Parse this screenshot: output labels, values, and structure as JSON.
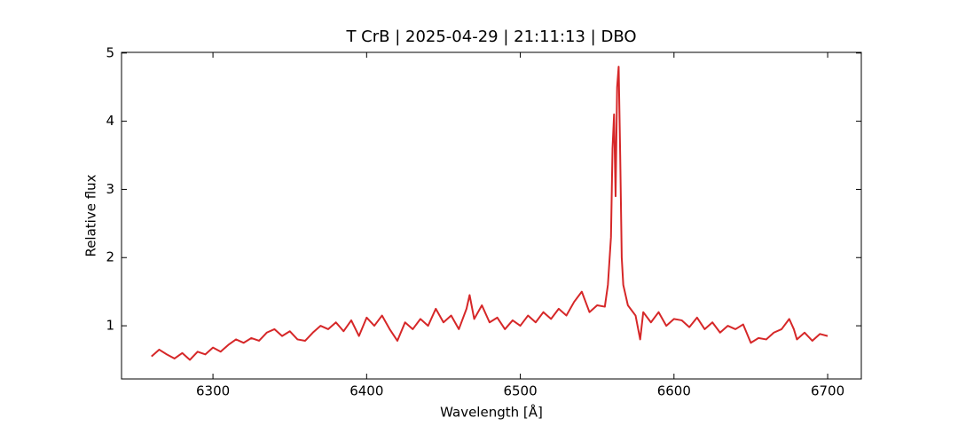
{
  "chart_data": {
    "type": "line",
    "title": "T CrB | 2025-04-29 | 21:11:13 | DBO",
    "x_label": "Wavelength [Å]",
    "y_label": "Relative flux",
    "xlim": [
      6240.5,
      6721.9
    ],
    "ylim": [
      0.22,
      5.01
    ],
    "xticks": [
      6300,
      6400,
      6500,
      6600,
      6700
    ],
    "yticks": [
      1,
      2,
      3,
      4,
      5
    ],
    "grid": false,
    "series": [
      {
        "color": "#d62728",
        "x": [
          6260,
          6265,
          6270,
          6275,
          6280,
          6285,
          6290,
          6295,
          6300,
          6305,
          6310,
          6315,
          6320,
          6325,
          6330,
          6335,
          6340,
          6345,
          6350,
          6355,
          6360,
          6365,
          6370,
          6375,
          6380,
          6385,
          6390,
          6395,
          6400,
          6405,
          6410,
          6415,
          6420,
          6425,
          6430,
          6435,
          6440,
          6445,
          6450,
          6455,
          6460,
          6465,
          6467,
          6470,
          6475,
          6480,
          6485,
          6490,
          6495,
          6500,
          6505,
          6510,
          6515,
          6520,
          6525,
          6530,
          6535,
          6540,
          6545,
          6550,
          6555,
          6557,
          6559,
          6560,
          6561,
          6562,
          6563,
          6564,
          6565,
          6566,
          6567,
          6570,
          6575,
          6578,
          6580,
          6585,
          6590,
          6595,
          6600,
          6605,
          6610,
          6615,
          6620,
          6625,
          6630,
          6635,
          6640,
          6645,
          6650,
          6655,
          6660,
          6665,
          6670,
          6675,
          6678,
          6680,
          6685,
          6690,
          6695,
          6700
        ],
        "values": [
          0.55,
          0.65,
          0.58,
          0.52,
          0.6,
          0.5,
          0.62,
          0.58,
          0.68,
          0.62,
          0.72,
          0.8,
          0.75,
          0.82,
          0.78,
          0.9,
          0.95,
          0.85,
          0.92,
          0.8,
          0.78,
          0.9,
          1.0,
          0.95,
          1.05,
          0.92,
          1.08,
          0.85,
          1.12,
          1.0,
          1.15,
          0.95,
          0.78,
          1.05,
          0.95,
          1.1,
          1.0,
          1.25,
          1.05,
          1.15,
          0.95,
          1.25,
          1.45,
          1.1,
          1.3,
          1.05,
          1.12,
          0.95,
          1.08,
          1.0,
          1.15,
          1.05,
          1.2,
          1.1,
          1.25,
          1.15,
          1.35,
          1.5,
          1.2,
          1.3,
          1.28,
          1.6,
          2.3,
          3.6,
          4.1,
          2.9,
          4.5,
          4.8,
          3.5,
          2.0,
          1.6,
          1.3,
          1.15,
          0.8,
          1.2,
          1.05,
          1.2,
          1.0,
          1.1,
          1.08,
          0.98,
          1.12,
          0.95,
          1.05,
          0.9,
          1.0,
          0.95,
          1.02,
          0.75,
          0.82,
          0.8,
          0.9,
          0.95,
          1.1,
          0.95,
          0.8,
          0.9,
          0.78,
          0.88,
          0.85
        ]
      }
    ]
  }
}
